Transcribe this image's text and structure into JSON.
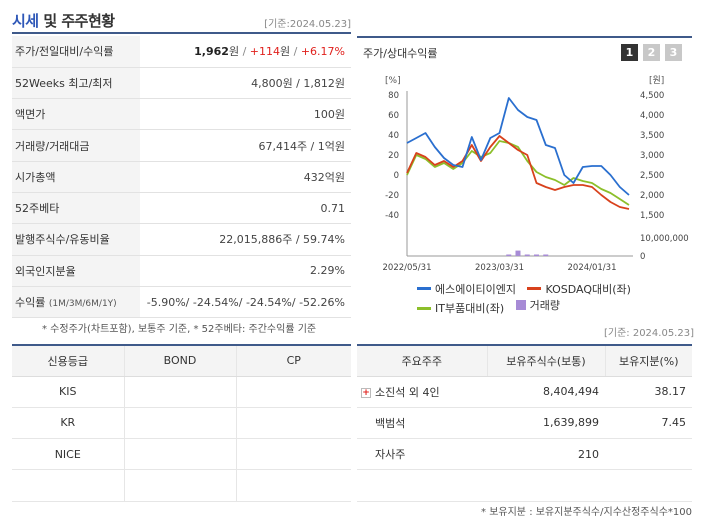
{
  "header": {
    "title_part1": "시세",
    "title_part2": " 및 주주현황",
    "date": "[기준:2024.05.23]"
  },
  "quote": {
    "price_label": "주가/전일대비/수익률",
    "price": "1,962",
    "unit_won": "원",
    "change": "+114",
    "change_pct": "+6.17%",
    "range_label": "52Weeks 최고/최저",
    "range_value": "4,800원 / 1,812원",
    "par_label": "액면가",
    "par_value": "100원",
    "volume_label": "거래량/거래대금",
    "volume_value": "67,414주 / 1억원",
    "mktcap_label": "시가총액",
    "mktcap_value": "432억원",
    "beta_label": "52주베타",
    "beta_value": "0.71",
    "shares_label": "발행주식수/유동비율",
    "shares_value": "22,015,886주 / 59.74%",
    "foreign_label": "외국인지분율",
    "foreign_value": "2.29%",
    "return_label": "수익률",
    "return_label_sub": "(1M/3M/6M/1Y)",
    "return_value": "-5.90%/ -24.54%/ -24.54%/ -52.26%"
  },
  "notes": {
    "left": "* 수정주가(차트포함), 보통주 기준, * 52주베타: 주간수익률 기준",
    "date2": "[기준: 2024.05.23]",
    "right": "* 보유지분 : 보유지분주식수/지수산정주식수*100"
  },
  "chart_panel": {
    "title": "주가/상대수익률",
    "pages": [
      "1",
      "2",
      "3"
    ],
    "left_unit": "[%]",
    "right_unit": "[원]"
  },
  "chart_data": {
    "type": "line",
    "x": [
      "2022/05/31",
      "2022/06/30",
      "2022/07/31",
      "2022/08/31",
      "2022/09/30",
      "2022/10/31",
      "2022/11/30",
      "2022/12/31",
      "2023/01/31",
      "2023/02/28",
      "2023/03/31",
      "2023/04/30",
      "2023/05/31",
      "2023/06/30",
      "2023/07/31",
      "2023/08/31",
      "2023/09/30",
      "2023/10/31",
      "2023/11/30",
      "2023/12/31",
      "2024/01/31",
      "2024/02/29",
      "2024/03/31",
      "2024/04/30",
      "2024/05/23"
    ],
    "x_ticks": [
      "2022/05/31",
      "2023/03/31",
      "2024/01/31"
    ],
    "series": [
      {
        "name": "에스에이티이엔지",
        "color": "#2a6fcf",
        "axis": "left",
        "values": [
          32,
          37,
          42,
          28,
          17,
          10,
          8,
          38,
          15,
          37,
          42,
          77,
          65,
          58,
          55,
          30,
          27,
          0,
          -8,
          8,
          9,
          9,
          0,
          -12,
          -20
        ]
      },
      {
        "name": "KOSDAQ대비(좌)",
        "color": "#d8411c",
        "axis": "left",
        "values": [
          2,
          22,
          18,
          10,
          14,
          8,
          14,
          30,
          14,
          28,
          39,
          32,
          25,
          20,
          -8,
          -12,
          -15,
          -12,
          -10,
          -10,
          -12,
          -20,
          -27,
          -32,
          -34
        ]
      },
      {
        "name": "IT부품대비(좌)",
        "color": "#8cbf2a",
        "axis": "left",
        "values": [
          0,
          20,
          16,
          8,
          12,
          6,
          12,
          24,
          18,
          22,
          34,
          32,
          28,
          14,
          3,
          -2,
          -5,
          -10,
          -3,
          -6,
          -8,
          -14,
          -18,
          -24,
          -30
        ]
      },
      {
        "name": "거래량",
        "color": "#a78bd6",
        "axis": "volume",
        "values": [
          0,
          0,
          0,
          0,
          0,
          0,
          0,
          0,
          0,
          0,
          0,
          300000,
          3000000,
          600000,
          200000,
          200000,
          0,
          0,
          0,
          0,
          0,
          0,
          0,
          0,
          0
        ]
      }
    ],
    "ylim_left": [
      -40,
      80
    ],
    "y_ticks_left": [
      "80",
      "60",
      "40",
      "20",
      "0",
      "-20",
      "-40"
    ],
    "ylim_right": [
      1500,
      4500
    ],
    "y_ticks_right": [
      "4,500",
      "4,000",
      "3,500",
      "3,000",
      "2,500",
      "2,000",
      "1,500"
    ],
    "volume_ticks": [
      "10,000,000",
      "0"
    ],
    "grid": false,
    "legend": "bottom"
  },
  "credit": {
    "headers": [
      "신용등급",
      "BOND",
      "CP"
    ],
    "rows": [
      [
        "KIS",
        "",
        ""
      ],
      [
        "KR",
        "",
        ""
      ],
      [
        "NICE",
        "",
        ""
      ],
      [
        "",
        "",
        ""
      ]
    ]
  },
  "holders": {
    "headers": [
      "주요주주",
      "보유주식수(보통)",
      "보유지분(%)"
    ],
    "rows": [
      {
        "name": "소진석 외 4인",
        "shares": "8,404,494",
        "pct": "38.17",
        "expand": "+"
      },
      {
        "name": "백범석",
        "shares": "1,639,899",
        "pct": "7.45",
        "expand": ""
      },
      {
        "name": "자사주",
        "shares": "210",
        "pct": "",
        "expand": ""
      },
      {
        "name": "",
        "shares": "",
        "pct": "",
        "expand": ""
      }
    ]
  }
}
